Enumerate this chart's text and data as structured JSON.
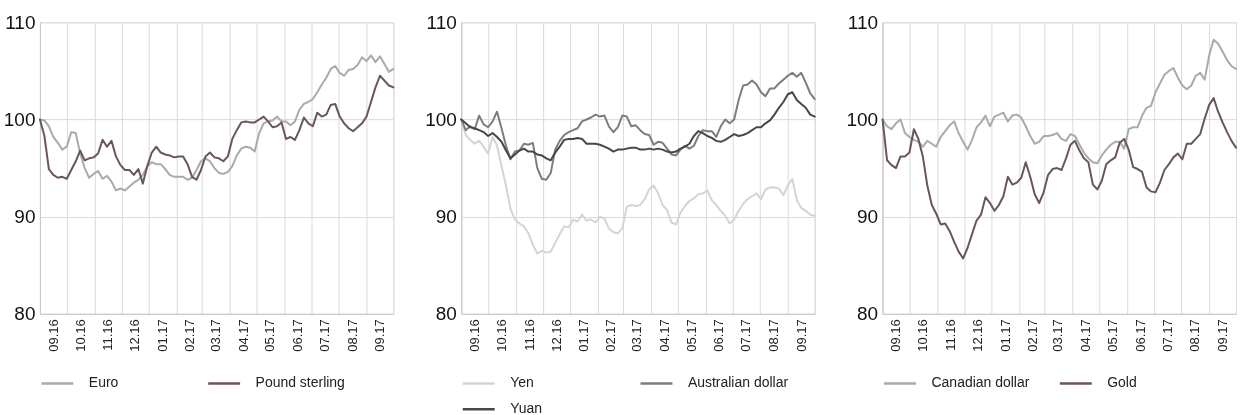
{
  "chart_data": [
    {
      "type": "line",
      "grid": true,
      "legend": "bottom",
      "line_style": "solid",
      "xlim": [
        "2016-09-01",
        "2017-10-01"
      ],
      "ylim": [
        80,
        110
      ],
      "yticks": [
        80,
        90,
        100,
        110
      ],
      "xticks": [
        {
          "value": "2016-09-01",
          "label": null
        },
        {
          "value": "2016-09-16",
          "label": "09.16"
        },
        {
          "value": "2016-10-01",
          "label": null
        },
        {
          "value": "2016-10-16",
          "label": "10.16"
        },
        {
          "value": "2016-11-01",
          "label": null
        },
        {
          "value": "2016-11-16",
          "label": "11.16"
        },
        {
          "value": "2016-12-01",
          "label": null
        },
        {
          "value": "2016-12-16",
          "label": "12.16"
        },
        {
          "value": "2017-01-01",
          "label": null
        },
        {
          "value": "2017-01-16",
          "label": "01.17"
        },
        {
          "value": "2017-02-01",
          "label": null
        },
        {
          "value": "2017-02-15",
          "label": "02.17"
        },
        {
          "value": "2017-03-01",
          "label": null
        },
        {
          "value": "2017-03-16",
          "label": "03.17"
        },
        {
          "value": "2017-04-01",
          "label": null
        },
        {
          "value": "2017-04-16",
          "label": "04.17"
        },
        {
          "value": "2017-05-01",
          "label": null
        },
        {
          "value": "2017-05-16",
          "label": "05.17"
        },
        {
          "value": "2017-06-01",
          "label": null
        },
        {
          "value": "2017-06-16",
          "label": "06.17"
        },
        {
          "value": "2017-07-01",
          "label": null
        },
        {
          "value": "2017-07-16",
          "label": "07.17"
        },
        {
          "value": "2017-08-01",
          "label": null
        },
        {
          "value": "2017-08-16",
          "label": "08.17"
        },
        {
          "value": "2017-09-01",
          "label": null
        },
        {
          "value": "2017-09-16",
          "label": "09.17"
        },
        {
          "value": "2017-10-01",
          "label": null
        }
      ],
      "x": [
        "2016-09-01",
        "2016-09-06",
        "2016-09-11",
        "2016-09-16",
        "2016-09-21",
        "2016-09-26",
        "2016-10-01",
        "2016-10-06",
        "2016-10-11",
        "2016-10-16",
        "2016-10-21",
        "2016-10-26",
        "2016-10-31",
        "2016-11-05",
        "2016-11-10",
        "2016-11-15",
        "2016-11-20",
        "2016-11-25",
        "2016-11-30",
        "2016-12-05",
        "2016-12-10",
        "2016-12-15",
        "2016-12-20",
        "2016-12-25",
        "2016-12-30",
        "2017-01-04",
        "2017-01-09",
        "2017-01-14",
        "2017-01-19",
        "2017-01-24",
        "2017-01-29",
        "2017-02-03",
        "2017-02-08",
        "2017-02-13",
        "2017-02-18",
        "2017-02-23",
        "2017-02-28",
        "2017-03-05",
        "2017-03-10",
        "2017-03-15",
        "2017-03-20",
        "2017-03-25",
        "2017-03-30",
        "2017-04-04",
        "2017-04-09",
        "2017-04-14",
        "2017-04-19",
        "2017-04-24",
        "2017-04-29",
        "2017-05-04",
        "2017-05-09",
        "2017-05-14",
        "2017-05-19",
        "2017-05-24",
        "2017-05-29",
        "2017-06-03",
        "2017-06-08",
        "2017-06-13",
        "2017-06-18",
        "2017-06-23",
        "2017-06-28",
        "2017-07-03",
        "2017-07-08",
        "2017-07-13",
        "2017-07-18",
        "2017-07-23",
        "2017-07-28",
        "2017-08-02",
        "2017-08-07",
        "2017-08-12",
        "2017-08-17",
        "2017-08-22",
        "2017-08-27",
        "2017-09-01",
        "2017-09-06",
        "2017-09-11",
        "2017-09-16",
        "2017-09-21",
        "2017-09-26",
        "2017-10-01"
      ],
      "series": [
        {
          "name": "Euro",
          "color": "#aaaaaa",
          "values": [
            100,
            99.9,
            99.3,
            98.2,
            97.6,
            96.9,
            97.2,
            98.7,
            98.6,
            96.5,
            95.0,
            94.0,
            94.4,
            94.7,
            93.9,
            94.2,
            93.6,
            92.7,
            92.9,
            92.7,
            93.1,
            93.5,
            93.8,
            94.3,
            95.2,
            95.6,
            95.4,
            95.4,
            94.9,
            94.3,
            94.1,
            94.1,
            94.1,
            93.8,
            94.0,
            94.8,
            95.7,
            96.0,
            95.7,
            95.0,
            94.5,
            94.4,
            94.6,
            95.2,
            96.3,
            97.0,
            97.2,
            97.1,
            96.7,
            98.6,
            99.6,
            99.8,
            99.9,
            100.3,
            99.8,
            99.8,
            99.4,
            99.8,
            101.0,
            101.6,
            101.8,
            102.1,
            102.8,
            103.6,
            104.3,
            105.2,
            105.5,
            104.8,
            104.5,
            105.1,
            105.2,
            105.6,
            106.4,
            106.0,
            106.6,
            105.9,
            106.5,
            105.7,
            104.9,
            105.2
          ]
        },
        {
          "name": "Pound sterling",
          "color": "#6b5656",
          "values": [
            100,
            98.3,
            94.9,
            94.3,
            94.0,
            94.1,
            93.9,
            94.8,
            95.7,
            96.8,
            95.8,
            96.0,
            96.1,
            96.5,
            97.9,
            97.2,
            97.8,
            96.2,
            95.3,
            94.8,
            94.8,
            94.3,
            94.9,
            93.4,
            95.2,
            96.6,
            97.2,
            96.6,
            96.4,
            96.3,
            96.1,
            96.2,
            96.2,
            95.4,
            94.1,
            93.8,
            94.8,
            96.2,
            96.6,
            96.1,
            96.0,
            95.7,
            96.2,
            98.0,
            98.9,
            99.7,
            99.8,
            99.7,
            99.7,
            100.0,
            100.3,
            99.8,
            99.2,
            99.3,
            99.7,
            98.0,
            98.2,
            97.9,
            98.9,
            100.2,
            99.6,
            99.3,
            100.7,
            100.3,
            100.5,
            101.5,
            101.6,
            100.3,
            99.6,
            99.1,
            98.8,
            99.2,
            99.6,
            100.3,
            101.8,
            103.3,
            104.5,
            104.0,
            103.5,
            103.3
          ]
        }
      ]
    },
    {
      "type": "line",
      "grid": true,
      "legend": "bottom",
      "line_style": "solid",
      "xlim": [
        "2016-09-01",
        "2017-10-01"
      ],
      "ylim": [
        80,
        110
      ],
      "yticks": [
        80,
        90,
        100,
        110
      ],
      "xticks": [
        {
          "value": "2016-09-01",
          "label": null
        },
        {
          "value": "2016-09-16",
          "label": "09.16"
        },
        {
          "value": "2016-10-01",
          "label": null
        },
        {
          "value": "2016-10-16",
          "label": "10.16"
        },
        {
          "value": "2016-11-01",
          "label": null
        },
        {
          "value": "2016-11-16",
          "label": "11.16"
        },
        {
          "value": "2016-12-01",
          "label": null
        },
        {
          "value": "2016-12-16",
          "label": "12.16"
        },
        {
          "value": "2017-01-01",
          "label": null
        },
        {
          "value": "2017-01-16",
          "label": "01.17"
        },
        {
          "value": "2017-02-01",
          "label": null
        },
        {
          "value": "2017-02-15",
          "label": "02.17"
        },
        {
          "value": "2017-03-01",
          "label": null
        },
        {
          "value": "2017-03-16",
          "label": "03.17"
        },
        {
          "value": "2017-04-01",
          "label": null
        },
        {
          "value": "2017-04-16",
          "label": "04.17"
        },
        {
          "value": "2017-05-01",
          "label": null
        },
        {
          "value": "2017-05-16",
          "label": "05.17"
        },
        {
          "value": "2017-06-01",
          "label": null
        },
        {
          "value": "2017-06-16",
          "label": "06.17"
        },
        {
          "value": "2017-07-01",
          "label": null
        },
        {
          "value": "2017-07-16",
          "label": "07.17"
        },
        {
          "value": "2017-08-01",
          "label": null
        },
        {
          "value": "2017-08-16",
          "label": "08.17"
        },
        {
          "value": "2017-09-01",
          "label": null
        },
        {
          "value": "2017-09-16",
          "label": "09.17"
        },
        {
          "value": "2017-10-01",
          "label": null
        }
      ],
      "x": [
        "2016-09-01",
        "2016-09-06",
        "2016-09-11",
        "2016-09-16",
        "2016-09-21",
        "2016-09-26",
        "2016-10-01",
        "2016-10-06",
        "2016-10-11",
        "2016-10-16",
        "2016-10-21",
        "2016-10-26",
        "2016-10-31",
        "2016-11-05",
        "2016-11-10",
        "2016-11-15",
        "2016-11-20",
        "2016-11-25",
        "2016-11-30",
        "2016-12-05",
        "2016-12-10",
        "2016-12-15",
        "2016-12-20",
        "2016-12-25",
        "2016-12-30",
        "2017-01-04",
        "2017-01-09",
        "2017-01-14",
        "2017-01-19",
        "2017-01-24",
        "2017-01-29",
        "2017-02-03",
        "2017-02-08",
        "2017-02-13",
        "2017-02-18",
        "2017-02-23",
        "2017-02-28",
        "2017-03-05",
        "2017-03-10",
        "2017-03-15",
        "2017-03-20",
        "2017-03-25",
        "2017-03-30",
        "2017-04-04",
        "2017-04-09",
        "2017-04-14",
        "2017-04-19",
        "2017-04-24",
        "2017-04-29",
        "2017-05-04",
        "2017-05-09",
        "2017-05-14",
        "2017-05-19",
        "2017-05-24",
        "2017-05-29",
        "2017-06-03",
        "2017-06-08",
        "2017-06-13",
        "2017-06-18",
        "2017-06-23",
        "2017-06-28",
        "2017-07-03",
        "2017-07-08",
        "2017-07-13",
        "2017-07-18",
        "2017-07-23",
        "2017-07-28",
        "2017-08-02",
        "2017-08-07",
        "2017-08-12",
        "2017-08-17",
        "2017-08-22",
        "2017-08-27",
        "2017-09-01",
        "2017-09-06",
        "2017-09-11",
        "2017-09-16",
        "2017-09-21",
        "2017-09-26",
        "2017-10-01"
      ],
      "series": [
        {
          "name": "Yen",
          "color": "#d4d4d4",
          "values": [
            100,
            98.4,
            97.9,
            97.5,
            97.8,
            97.2,
            96.5,
            98.2,
            97.3,
            95.2,
            93.2,
            90.8,
            89.7,
            89.3,
            89.0,
            88.3,
            87.1,
            86.2,
            86.5,
            86.3,
            86.4,
            87.3,
            88.2,
            89.0,
            88.9,
            89.7,
            89.5,
            90.2,
            89.6,
            89.7,
            89.4,
            90.0,
            89.8,
            88.8,
            88.4,
            88.3,
            88.8,
            91.0,
            91.2,
            91.1,
            91.2,
            91.8,
            92.8,
            93.2,
            92.4,
            91.2,
            90.7,
            89.4,
            89.2,
            90.4,
            91.1,
            91.6,
            91.9,
            92.3,
            92.4,
            92.7,
            91.7,
            91.2,
            90.6,
            90.1,
            89.3,
            89.7,
            90.6,
            91.3,
            91.8,
            92.1,
            92.4,
            91.8,
            92.8,
            93.0,
            93.0,
            92.9,
            92.2,
            93.2,
            93.9,
            91.7,
            90.9,
            90.6,
            90.2,
            90.1
          ]
        },
        {
          "name": "Australian dollar",
          "color": "#7d7d7d",
          "values": [
            100,
            98.9,
            99.3,
            99.0,
            100.4,
            99.5,
            99.2,
            99.8,
            100.8,
            99.1,
            97.3,
            95.9,
            96.7,
            96.8,
            97.5,
            97.4,
            97.6,
            95.0,
            93.9,
            93.8,
            94.5,
            96.9,
            97.8,
            98.4,
            98.7,
            98.9,
            99.1,
            99.8,
            100.0,
            100.2,
            100.5,
            100.3,
            100.4,
            99.3,
            98.7,
            99.2,
            100.4,
            100.3,
            99.3,
            99.4,
            98.9,
            98.5,
            98.4,
            97.4,
            97.7,
            97.6,
            97.0,
            96.4,
            96.3,
            96.9,
            97.3,
            97.0,
            97.3,
            98.3,
            98.9,
            98.8,
            98.8,
            98.2,
            99.3,
            100.0,
            99.6,
            100.0,
            102.0,
            103.5,
            103.6,
            104.0,
            103.6,
            102.8,
            102.4,
            103.2,
            103.2,
            103.7,
            104.1,
            104.5,
            104.8,
            104.4,
            104.8,
            103.8,
            102.7,
            102.1
          ]
        },
        {
          "name": "Yuan",
          "color": "#474747",
          "values": [
            100,
            99.6,
            99.2,
            99.1,
            98.9,
            98.7,
            98.3,
            98.6,
            98.2,
            97.7,
            96.8,
            96.0,
            96.4,
            96.8,
            97.0,
            96.7,
            96.7,
            96.4,
            96.3,
            96.0,
            95.8,
            96.6,
            97.2,
            97.9,
            98.0,
            98.0,
            98.1,
            98.0,
            97.5,
            97.5,
            97.5,
            97.4,
            97.2,
            97.0,
            96.7,
            96.9,
            96.9,
            97.0,
            97.1,
            97.1,
            96.9,
            96.9,
            97.0,
            96.9,
            97.0,
            96.9,
            96.7,
            96.6,
            96.7,
            97.0,
            97.2,
            97.5,
            98.3,
            98.8,
            98.6,
            98.3,
            98.1,
            97.8,
            97.7,
            97.9,
            98.2,
            98.5,
            98.3,
            98.4,
            98.6,
            98.9,
            99.2,
            99.2,
            99.6,
            99.9,
            100.5,
            101.2,
            101.8,
            102.6,
            102.8,
            102.0,
            101.6,
            101.2,
            100.5,
            100.3
          ]
        }
      ]
    },
    {
      "type": "line",
      "grid": true,
      "legend": "bottom",
      "line_style": "solid",
      "xlim": [
        "2016-09-01",
        "2017-10-01"
      ],
      "ylim": [
        80,
        110
      ],
      "yticks": [
        80,
        90,
        100,
        110
      ],
      "xticks": [
        {
          "value": "2016-09-01",
          "label": null
        },
        {
          "value": "2016-09-16",
          "label": "09.16"
        },
        {
          "value": "2016-10-01",
          "label": null
        },
        {
          "value": "2016-10-16",
          "label": "10.16"
        },
        {
          "value": "2016-11-01",
          "label": null
        },
        {
          "value": "2016-11-16",
          "label": "11.16"
        },
        {
          "value": "2016-12-01",
          "label": null
        },
        {
          "value": "2016-12-16",
          "label": "12.16"
        },
        {
          "value": "2017-01-01",
          "label": null
        },
        {
          "value": "2017-01-16",
          "label": "01.17"
        },
        {
          "value": "2017-02-01",
          "label": null
        },
        {
          "value": "2017-02-15",
          "label": "02.17"
        },
        {
          "value": "2017-03-01",
          "label": null
        },
        {
          "value": "2017-03-16",
          "label": "03.17"
        },
        {
          "value": "2017-04-01",
          "label": null
        },
        {
          "value": "2017-04-16",
          "label": "04.17"
        },
        {
          "value": "2017-05-01",
          "label": null
        },
        {
          "value": "2017-05-16",
          "label": "05.17"
        },
        {
          "value": "2017-06-01",
          "label": null
        },
        {
          "value": "2017-06-16",
          "label": "06.17"
        },
        {
          "value": "2017-07-01",
          "label": null
        },
        {
          "value": "2017-07-16",
          "label": "07.17"
        },
        {
          "value": "2017-08-01",
          "label": null
        },
        {
          "value": "2017-08-16",
          "label": "08.17"
        },
        {
          "value": "2017-09-01",
          "label": null
        },
        {
          "value": "2017-09-16",
          "label": "09.17"
        },
        {
          "value": "2017-10-01",
          "label": null
        }
      ],
      "x": [
        "2016-09-01",
        "2016-09-06",
        "2016-09-11",
        "2016-09-16",
        "2016-09-21",
        "2016-09-26",
        "2016-10-01",
        "2016-10-06",
        "2016-10-11",
        "2016-10-16",
        "2016-10-21",
        "2016-10-26",
        "2016-10-31",
        "2016-11-05",
        "2016-11-10",
        "2016-11-15",
        "2016-11-20",
        "2016-11-25",
        "2016-11-30",
        "2016-12-05",
        "2016-12-10",
        "2016-12-15",
        "2016-12-20",
        "2016-12-25",
        "2016-12-30",
        "2017-01-04",
        "2017-01-09",
        "2017-01-14",
        "2017-01-19",
        "2017-01-24",
        "2017-01-29",
        "2017-02-03",
        "2017-02-08",
        "2017-02-13",
        "2017-02-18",
        "2017-02-23",
        "2017-02-28",
        "2017-03-05",
        "2017-03-10",
        "2017-03-15",
        "2017-03-20",
        "2017-03-25",
        "2017-03-30",
        "2017-04-04",
        "2017-04-09",
        "2017-04-14",
        "2017-04-19",
        "2017-04-24",
        "2017-04-29",
        "2017-05-04",
        "2017-05-09",
        "2017-05-14",
        "2017-05-19",
        "2017-05-24",
        "2017-05-29",
        "2017-06-03",
        "2017-06-08",
        "2017-06-13",
        "2017-06-18",
        "2017-06-23",
        "2017-06-28",
        "2017-07-03",
        "2017-07-08",
        "2017-07-13",
        "2017-07-18",
        "2017-07-23",
        "2017-07-28",
        "2017-08-02",
        "2017-08-07",
        "2017-08-12",
        "2017-08-17",
        "2017-08-22",
        "2017-08-27",
        "2017-09-01",
        "2017-09-06",
        "2017-09-11",
        "2017-09-16",
        "2017-09-21",
        "2017-09-26",
        "2017-10-01"
      ],
      "series": [
        {
          "name": "Canadian dollar",
          "color": "#aaaaaa",
          "values": [
            100,
            99.3,
            99.0,
            99.6,
            100.0,
            98.6,
            98.2,
            97.9,
            97.7,
            97.2,
            97.8,
            97.5,
            97.2,
            98.2,
            98.8,
            99.4,
            99.8,
            98.6,
            97.7,
            96.9,
            97.9,
            99.2,
            99.7,
            100.4,
            99.3,
            100.3,
            100.5,
            100.7,
            99.8,
            100.4,
            100.5,
            100.2,
            99.3,
            98.3,
            97.5,
            97.7,
            98.3,
            98.3,
            98.4,
            98.6,
            98.0,
            97.8,
            98.5,
            98.3,
            97.4,
            96.6,
            96.0,
            95.6,
            95.5,
            96.3,
            96.9,
            97.4,
            97.7,
            97.7,
            97.0,
            99.0,
            99.2,
            99.2,
            100.4,
            101.2,
            101.4,
            102.8,
            103.7,
            104.6,
            105.0,
            105.3,
            104.3,
            103.5,
            103.1,
            103.5,
            104.5,
            104.8,
            104.1,
            106.6,
            108.2,
            107.8,
            107.0,
            106.1,
            105.5,
            105.2
          ]
        },
        {
          "name": "Gold",
          "color": "#6b5656",
          "values": [
            100,
            95.8,
            95.3,
            95.0,
            96.2,
            96.2,
            96.6,
            99.0,
            98.0,
            96.2,
            93.2,
            91.2,
            90.3,
            89.2,
            89.3,
            88.5,
            87.4,
            86.4,
            85.7,
            86.8,
            88.2,
            89.6,
            90.2,
            92.0,
            91.4,
            90.6,
            91.2,
            92.1,
            94.1,
            93.3,
            93.5,
            94.0,
            95.6,
            94.1,
            92.3,
            91.4,
            92.5,
            94.3,
            94.9,
            95.0,
            94.8,
            96.0,
            97.4,
            97.8,
            96.8,
            96.0,
            95.6,
            93.3,
            92.8,
            93.7,
            95.4,
            95.8,
            96.1,
            97.6,
            98.0,
            96.9,
            95.1,
            94.9,
            94.6,
            93.0,
            92.6,
            92.5,
            93.5,
            94.8,
            95.4,
            96.1,
            96.5,
            95.9,
            97.5,
            97.5,
            98.0,
            98.5,
            100.1,
            101.5,
            102.2,
            100.8,
            99.7,
            98.7,
            97.8,
            97.1
          ]
        }
      ]
    }
  ]
}
